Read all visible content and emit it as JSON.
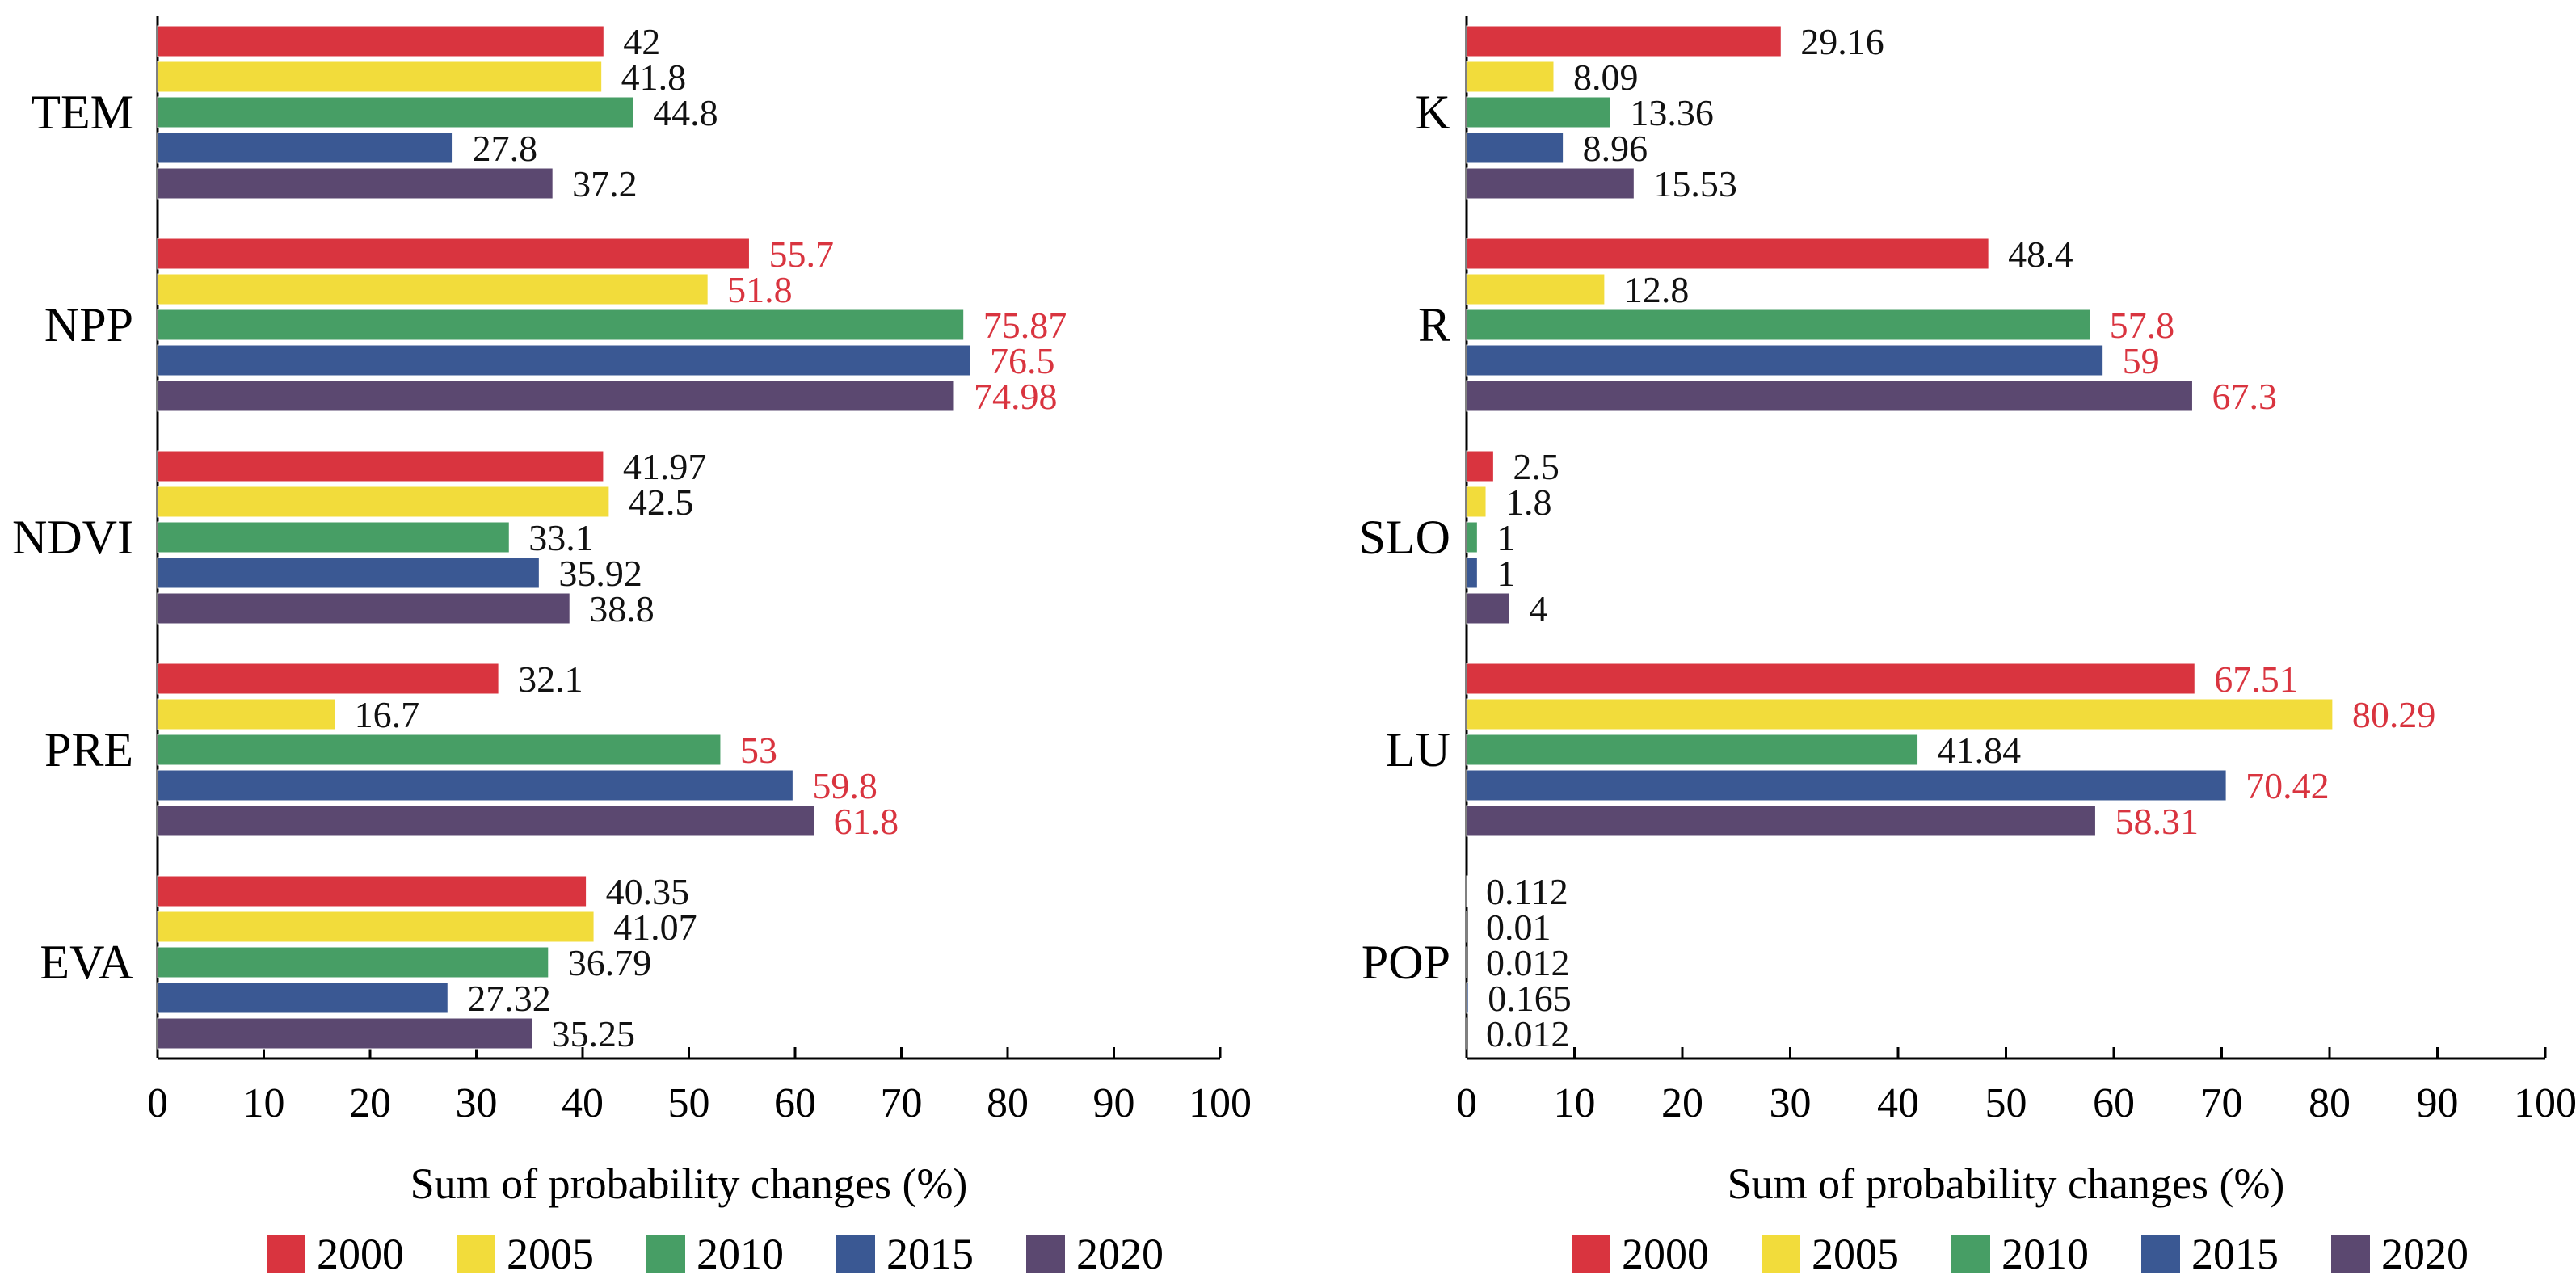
{
  "colors": {
    "2000": "#d9343f",
    "2005": "#f2dc3b",
    "2010": "#479e65",
    "2015": "#3a5893",
    "2020": "#5b4870",
    "highlight_label": "#d9343f",
    "normal_label": "#111111"
  },
  "chart_data": [
    {
      "type": "bar",
      "orientation": "horizontal",
      "xlabel": "Sum of probability changes (%)",
      "xlim": [
        0,
        100
      ],
      "xticks": [
        "0",
        "10",
        "20",
        "30",
        "40",
        "50",
        "60",
        "70",
        "80",
        "90",
        "100"
      ],
      "categories": [
        "TEM",
        "NPP",
        "NDVI",
        "PRE",
        "EVA"
      ],
      "series": [
        {
          "name": "2000",
          "values": [
            42,
            55.7,
            41.97,
            32.1,
            40.35
          ],
          "labels": [
            "42",
            "55.7",
            "41.97",
            "32.1",
            "40.35"
          ],
          "highlight": [
            false,
            true,
            false,
            false,
            false
          ]
        },
        {
          "name": "2005",
          "values": [
            41.8,
            51.8,
            42.5,
            16.7,
            41.07
          ],
          "labels": [
            "41.8",
            "51.8",
            "42.5",
            "16.7",
            "41.07"
          ],
          "highlight": [
            false,
            true,
            false,
            false,
            false
          ]
        },
        {
          "name": "2010",
          "values": [
            44.8,
            75.87,
            33.1,
            53,
            36.79
          ],
          "labels": [
            "44.8",
            "75.87",
            "33.1",
            "53",
            "36.79"
          ],
          "highlight": [
            false,
            true,
            false,
            true,
            false
          ]
        },
        {
          "name": "2015",
          "values": [
            27.8,
            76.5,
            35.92,
            59.8,
            27.32
          ],
          "labels": [
            "27.8",
            "76.5",
            "35.92",
            "59.8",
            "27.32"
          ],
          "highlight": [
            false,
            true,
            false,
            true,
            false
          ]
        },
        {
          "name": "2020",
          "values": [
            37.2,
            74.98,
            38.8,
            61.8,
            35.25
          ],
          "labels": [
            "37.2",
            "74.98",
            "38.8",
            "61.8",
            "35.25"
          ],
          "highlight": [
            false,
            true,
            false,
            true,
            false
          ]
        }
      ],
      "legend": {
        "position": "bottom",
        "entries": [
          "2000",
          "2005",
          "2010",
          "2015",
          "2020"
        ]
      },
      "grid": false
    },
    {
      "type": "bar",
      "orientation": "horizontal",
      "xlabel": "Sum of probability changes (%)",
      "xlim": [
        0,
        100
      ],
      "xticks": [
        "0",
        "10",
        "20",
        "30",
        "40",
        "50",
        "60",
        "70",
        "80",
        "90",
        "100"
      ],
      "categories": [
        "K",
        "R",
        "SLO",
        "LU",
        "POP"
      ],
      "series": [
        {
          "name": "2000",
          "values": [
            29.16,
            48.4,
            2.5,
            67.51,
            0.112
          ],
          "labels": [
            "29.16",
            "48.4",
            "2.5",
            "67.51",
            "0.112"
          ],
          "highlight": [
            false,
            false,
            false,
            true,
            false
          ]
        },
        {
          "name": "2005",
          "values": [
            8.09,
            12.8,
            1.8,
            80.29,
            0.01
          ],
          "labels": [
            "8.09",
            "12.8",
            "1.8",
            "80.29",
            "0.01"
          ],
          "highlight": [
            false,
            false,
            false,
            true,
            false
          ]
        },
        {
          "name": "2010",
          "values": [
            13.36,
            57.8,
            1,
            41.84,
            0.012
          ],
          "labels": [
            "13.36",
            "57.8",
            "1",
            "41.84",
            "0.012"
          ],
          "highlight": [
            false,
            true,
            false,
            false,
            false
          ]
        },
        {
          "name": "2015",
          "values": [
            8.96,
            59,
            1,
            70.42,
            0.165
          ],
          "labels": [
            "8.96",
            "59",
            "1",
            "70.42",
            "0.165"
          ],
          "highlight": [
            false,
            true,
            false,
            true,
            false
          ]
        },
        {
          "name": "2020",
          "values": [
            15.53,
            67.3,
            4,
            58.31,
            0.012
          ],
          "labels": [
            "15.53",
            "67.3",
            "4",
            "58.31",
            "0.012"
          ],
          "highlight": [
            false,
            true,
            false,
            true,
            false
          ]
        }
      ],
      "legend": {
        "position": "bottom",
        "entries": [
          "2000",
          "2005",
          "2010",
          "2015",
          "2020"
        ]
      },
      "grid": false
    }
  ]
}
